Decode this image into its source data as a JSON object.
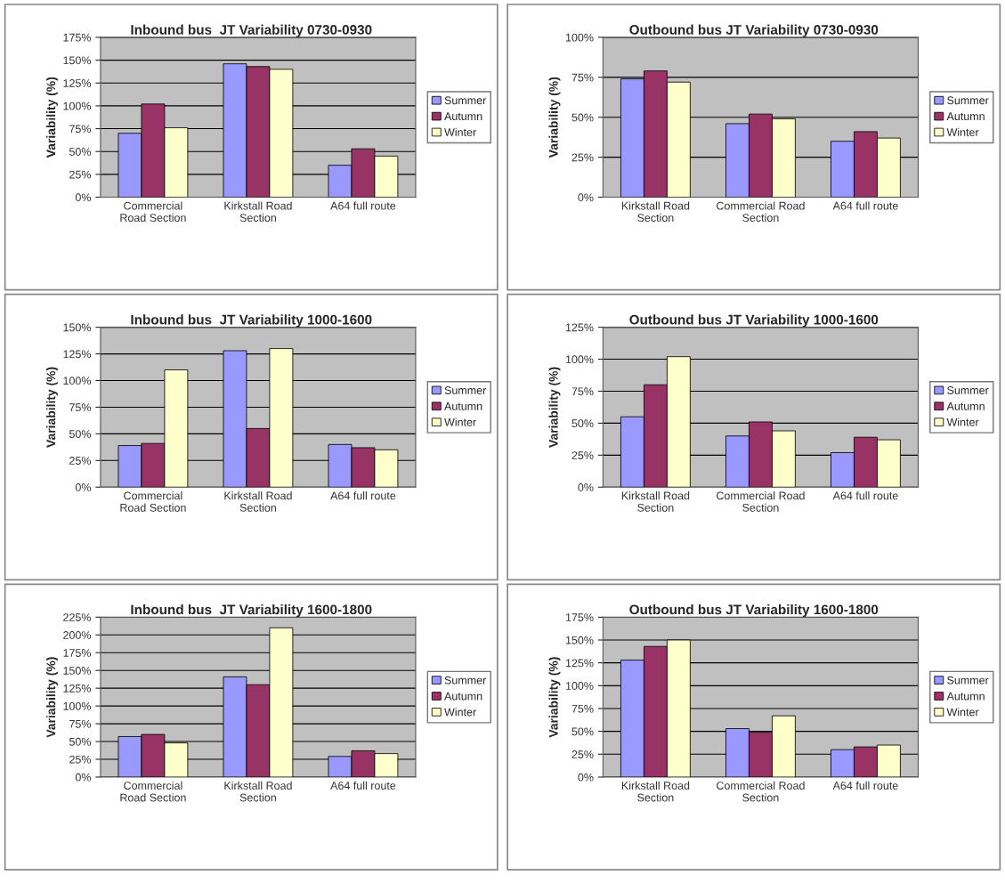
{
  "chart_data": [
    {
      "type": "bar",
      "title": "Inbound bus  JT Variability 0730-0930",
      "ylabel": "Variability (%)",
      "categories": [
        "Commercial\nRoad Section",
        "Kirkstall Road\nSection",
        "A64 full route"
      ],
      "series": [
        {
          "name": "Summer",
          "color": "#9999ff",
          "values": [
            70,
            146,
            35
          ]
        },
        {
          "name": "Autumn",
          "color": "#993366",
          "values": [
            102,
            143,
            53
          ]
        },
        {
          "name": "Winter",
          "color": "#ffffcc",
          "values": [
            76,
            140,
            45
          ]
        }
      ],
      "ylim": [
        0,
        175
      ],
      "yticks": [
        {
          "value": 0,
          "label": "0%"
        },
        {
          "value": 25,
          "label": "25%"
        },
        {
          "value": 50,
          "label": "50%"
        },
        {
          "value": 75,
          "label": "75%"
        },
        {
          "value": 100,
          "label": "100%"
        },
        {
          "value": 125,
          "label": "125%"
        },
        {
          "value": 150,
          "label": "150%"
        },
        {
          "value": 175,
          "label": "175%"
        }
      ],
      "grid": "y",
      "legend": "right"
    },
    {
      "type": "bar",
      "title": "Outbound bus JT Variability 0730-0930",
      "ylabel": "Variability (%)",
      "categories": [
        "Kirkstall Road\nSection",
        "Commercial Road\nSection",
        "A64 full route"
      ],
      "series": [
        {
          "name": "Summer",
          "color": "#9999ff",
          "values": [
            74,
            46,
            35
          ]
        },
        {
          "name": "Autumn",
          "color": "#993366",
          "values": [
            79,
            52,
            41
          ]
        },
        {
          "name": "Winter",
          "color": "#ffffcc",
          "values": [
            72,
            49,
            37
          ]
        }
      ],
      "ylim": [
        0,
        100
      ],
      "yticks": [
        {
          "value": 0,
          "label": "0%"
        },
        {
          "value": 25,
          "label": "25%"
        },
        {
          "value": 50,
          "label": "50%"
        },
        {
          "value": 75,
          "label": "75%"
        },
        {
          "value": 100,
          "label": "100%"
        }
      ],
      "grid": "y",
      "legend": "right"
    },
    {
      "type": "bar",
      "title": "Inbound bus  JT Variability 1000-1600",
      "ylabel": "Variability (%)",
      "categories": [
        "Commercial\nRoad Section",
        "Kirkstall Road\nSection",
        "A64 full route"
      ],
      "series": [
        {
          "name": "Summer",
          "color": "#9999ff",
          "values": [
            39,
            128,
            40
          ]
        },
        {
          "name": "Autumn",
          "color": "#993366",
          "values": [
            41,
            55,
            37
          ]
        },
        {
          "name": "Winter",
          "color": "#ffffcc",
          "values": [
            110,
            130,
            35
          ]
        }
      ],
      "ylim": [
        0,
        150
      ],
      "yticks": [
        {
          "value": 0,
          "label": "0%"
        },
        {
          "value": 25,
          "label": "25%"
        },
        {
          "value": 50,
          "label": "50%"
        },
        {
          "value": 75,
          "label": "75%"
        },
        {
          "value": 100,
          "label": "100%"
        },
        {
          "value": 125,
          "label": "125%"
        },
        {
          "value": 150,
          "label": "150%"
        }
      ],
      "grid": "y",
      "legend": "right"
    },
    {
      "type": "bar",
      "title": "Outbound bus JT Variability 1000-1600",
      "ylabel": "Variability (%)",
      "categories": [
        "Kirkstall Road\nSection",
        "Commercial Road\nSection",
        "A64 full route"
      ],
      "series": [
        {
          "name": "Summer",
          "color": "#9999ff",
          "values": [
            55,
            40,
            27
          ]
        },
        {
          "name": "Autumn",
          "color": "#993366",
          "values": [
            80,
            51,
            39
          ]
        },
        {
          "name": "Winter",
          "color": "#ffffcc",
          "values": [
            102,
            44,
            37
          ]
        }
      ],
      "ylim": [
        0,
        125
      ],
      "yticks": [
        {
          "value": 0,
          "label": "0%"
        },
        {
          "value": 25,
          "label": "25%"
        },
        {
          "value": 50,
          "label": "50%"
        },
        {
          "value": 75,
          "label": "75%"
        },
        {
          "value": 100,
          "label": "100%"
        },
        {
          "value": 125,
          "label": "125%"
        }
      ],
      "grid": "y",
      "legend": "right"
    },
    {
      "type": "bar",
      "title": "Inbound bus  JT Variability 1600-1800",
      "ylabel": "Variability (%)",
      "categories": [
        "Commercial\nRoad Section",
        "Kirkstall Road\nSection",
        "A64 full route"
      ],
      "series": [
        {
          "name": "Summer",
          "color": "#9999ff",
          "values": [
            57,
            141,
            29
          ]
        },
        {
          "name": "Autumn",
          "color": "#993366",
          "values": [
            60,
            130,
            37
          ]
        },
        {
          "name": "Winter",
          "color": "#ffffcc",
          "values": [
            48,
            210,
            33
          ]
        }
      ],
      "ylim": [
        0,
        225
      ],
      "yticks": [
        {
          "value": 0,
          "label": "0%"
        },
        {
          "value": 25,
          "label": "25%"
        },
        {
          "value": 50,
          "label": "50%"
        },
        {
          "value": 75,
          "label": "75%"
        },
        {
          "value": 100,
          "label": "100%"
        },
        {
          "value": 125,
          "label": "125%"
        },
        {
          "value": 150,
          "label": "150%"
        },
        {
          "value": 175,
          "label": "175%"
        },
        {
          "value": 200,
          "label": "200%"
        },
        {
          "value": 225,
          "label": "225%"
        }
      ],
      "grid": "y",
      "legend": "right"
    },
    {
      "type": "bar",
      "title": "Outbound bus JT Variability 1600-1800",
      "ylabel": "Variability (%)",
      "categories": [
        "Kirkstall Road\nSection",
        "Commercial Road\nSection",
        "A64 full route"
      ],
      "series": [
        {
          "name": "Summer",
          "color": "#9999ff",
          "values": [
            128,
            53,
            30
          ]
        },
        {
          "name": "Autumn",
          "color": "#993366",
          "values": [
            143,
            49,
            33
          ]
        },
        {
          "name": "Winter",
          "color": "#ffffcc",
          "values": [
            150,
            67,
            35
          ]
        }
      ],
      "ylim": [
        0,
        175
      ],
      "yticks": [
        {
          "value": 0,
          "label": "0%"
        },
        {
          "value": 25,
          "label": "25%"
        },
        {
          "value": 50,
          "label": "50%"
        },
        {
          "value": 75,
          "label": "75%"
        },
        {
          "value": 100,
          "label": "100%"
        },
        {
          "value": 125,
          "label": "125%"
        },
        {
          "value": 150,
          "label": "150%"
        },
        {
          "value": 175,
          "label": "175%"
        }
      ],
      "grid": "y",
      "legend": "right"
    }
  ]
}
